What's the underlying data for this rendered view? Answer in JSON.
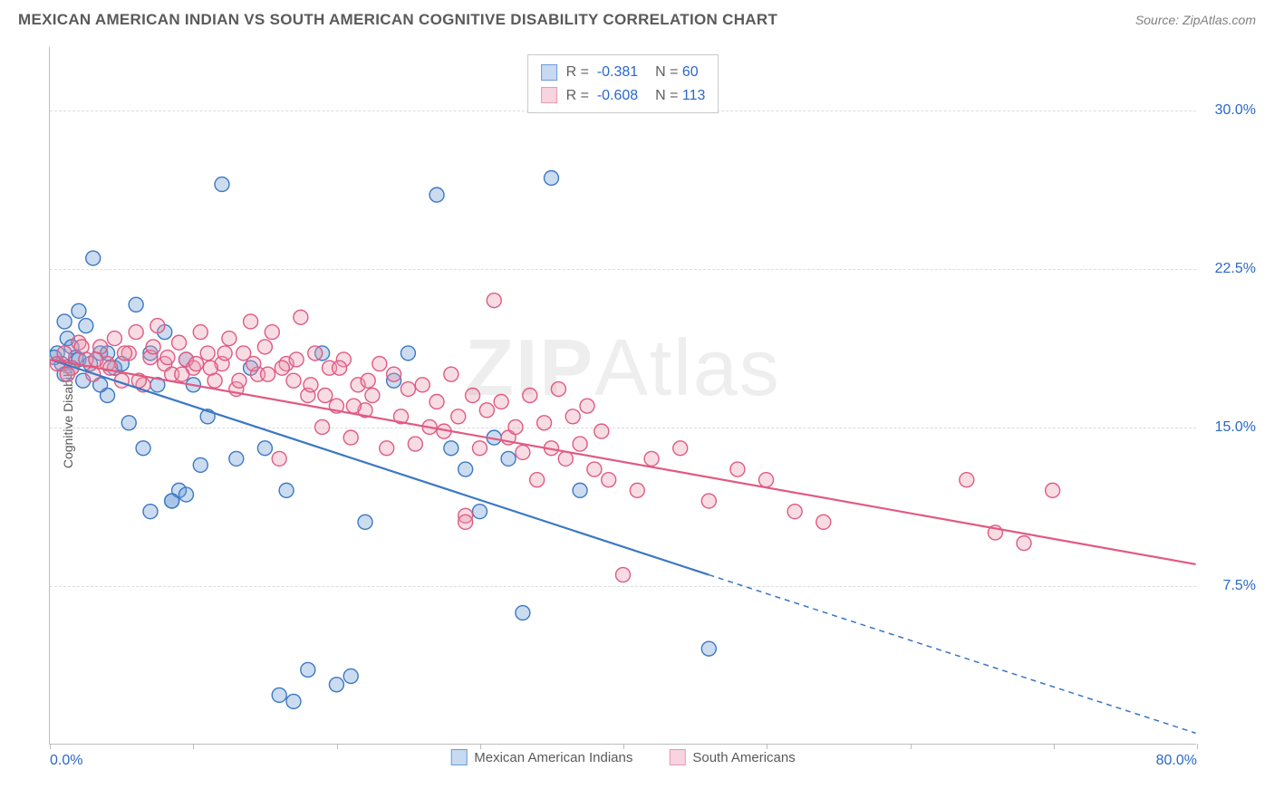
{
  "title": "MEXICAN AMERICAN INDIAN VS SOUTH AMERICAN COGNITIVE DISABILITY CORRELATION CHART",
  "source": "Source: ZipAtlas.com",
  "ylabel": "Cognitive Disability",
  "watermark_prefix": "ZIP",
  "watermark_suffix": "Atlas",
  "chart": {
    "type": "scatter",
    "background_color": "#ffffff",
    "grid_color": "#dcdcdc",
    "axis_color": "#bdbdbd",
    "tick_color": "#2968c8",
    "tick_fontsize": 16,
    "xlim": [
      0,
      80
    ],
    "ylim": [
      0,
      33
    ],
    "xticks": [
      0,
      10,
      20,
      30,
      40,
      50,
      60,
      70,
      80
    ],
    "xtick_labels": {
      "0": "0.0%",
      "80": "80.0%"
    },
    "yticks": [
      7.5,
      15.0,
      22.5,
      30.0
    ],
    "ytick_labels": [
      "7.5%",
      "15.0%",
      "22.5%",
      "30.0%"
    ],
    "marker_radius": 8,
    "marker_stroke_width": 1.4,
    "marker_fill_opacity": 0.35,
    "trend_line_width": 2.2,
    "series": [
      {
        "name": "Mexican American Indians",
        "color": "#6b9bd8",
        "stroke": "#3c78c3",
        "swatch_fill": "#c7daf2",
        "swatch_border": "#6b9bd8",
        "R": "-0.381",
        "N": "60",
        "trend": {
          "x1": 0,
          "y1": 18.2,
          "x2": 46,
          "y2": 8.0,
          "x2_ext": 80,
          "y2_ext": 0.5
        },
        "points": [
          [
            0.5,
            18.5
          ],
          [
            0.8,
            18.0
          ],
          [
            1.0,
            17.5
          ],
          [
            1.2,
            19.2
          ],
          [
            1.5,
            18.8
          ],
          [
            1.8,
            18.3
          ],
          [
            2.0,
            20.5
          ],
          [
            2.3,
            17.2
          ],
          [
            2.5,
            19.8
          ],
          [
            3.0,
            23.0
          ],
          [
            3.5,
            18.5
          ],
          [
            4.0,
            16.5
          ],
          [
            4.5,
            17.8
          ],
          [
            5.0,
            18.0
          ],
          [
            5.5,
            15.2
          ],
          [
            6.0,
            20.8
          ],
          [
            6.5,
            14.0
          ],
          [
            7.0,
            18.5
          ],
          [
            7.5,
            17.0
          ],
          [
            8.0,
            19.5
          ],
          [
            8.5,
            11.5
          ],
          [
            9.0,
            12.0
          ],
          [
            9.5,
            18.2
          ],
          [
            10.0,
            17.0
          ],
          [
            11.0,
            15.5
          ],
          [
            12.0,
            26.5
          ],
          [
            13.0,
            13.5
          ],
          [
            14.0,
            17.8
          ],
          [
            15.0,
            14.0
          ],
          [
            16.0,
            2.3
          ],
          [
            7.0,
            11.0
          ],
          [
            8.5,
            11.5
          ],
          [
            18.0,
            3.5
          ],
          [
            17.0,
            2.0
          ],
          [
            19.0,
            18.5
          ],
          [
            20.0,
            2.8
          ],
          [
            16.5,
            12.0
          ],
          [
            21.0,
            3.2
          ],
          [
            22.0,
            10.5
          ],
          [
            24.0,
            17.2
          ],
          [
            25.0,
            18.5
          ],
          [
            27.0,
            26.0
          ],
          [
            28.0,
            14.0
          ],
          [
            29.0,
            13.0
          ],
          [
            30.0,
            11.0
          ],
          [
            31.0,
            14.5
          ],
          [
            32.0,
            13.5
          ],
          [
            33.0,
            6.2
          ],
          [
            35.0,
            26.8
          ],
          [
            37.0,
            12.0
          ],
          [
            46.0,
            4.5
          ],
          [
            9.5,
            11.8
          ],
          [
            10.5,
            13.2
          ],
          [
            1.0,
            20.0
          ],
          [
            2.0,
            18.2
          ],
          [
            3.5,
            17.0
          ],
          [
            4.0,
            18.5
          ],
          [
            1.5,
            17.8
          ],
          [
            2.8,
            18.0
          ],
          [
            0.3,
            18.3
          ]
        ]
      },
      {
        "name": "South Americans",
        "color": "#e89ab0",
        "stroke": "#e05a82",
        "swatch_fill": "#f7d4df",
        "swatch_border": "#e89ab0",
        "R": "-0.608",
        "N": "113",
        "trend": {
          "x1": 0,
          "y1": 18.2,
          "x2": 80,
          "y2": 8.5,
          "x2_ext": 80,
          "y2_ext": 8.5
        },
        "points": [
          [
            0.5,
            18.0
          ],
          [
            1.0,
            18.5
          ],
          [
            1.5,
            17.8
          ],
          [
            2.0,
            19.0
          ],
          [
            2.5,
            18.2
          ],
          [
            3.0,
            17.5
          ],
          [
            3.5,
            18.8
          ],
          [
            4.0,
            18.0
          ],
          [
            4.5,
            19.2
          ],
          [
            5.0,
            17.2
          ],
          [
            5.5,
            18.5
          ],
          [
            6.0,
            19.5
          ],
          [
            6.5,
            17.0
          ],
          [
            7.0,
            18.3
          ],
          [
            7.5,
            19.8
          ],
          [
            8.0,
            18.0
          ],
          [
            8.5,
            17.5
          ],
          [
            9.0,
            19.0
          ],
          [
            9.5,
            18.2
          ],
          [
            10.0,
            17.8
          ],
          [
            10.5,
            19.5
          ],
          [
            11.0,
            18.5
          ],
          [
            11.5,
            17.2
          ],
          [
            12.0,
            18.0
          ],
          [
            12.5,
            19.2
          ],
          [
            13.0,
            16.8
          ],
          [
            13.5,
            18.5
          ],
          [
            14.0,
            20.0
          ],
          [
            14.5,
            17.5
          ],
          [
            15.0,
            18.8
          ],
          [
            15.5,
            19.5
          ],
          [
            16.0,
            13.5
          ],
          [
            16.5,
            18.0
          ],
          [
            17.0,
            17.2
          ],
          [
            17.5,
            20.2
          ],
          [
            18.0,
            16.5
          ],
          [
            18.5,
            18.5
          ],
          [
            19.0,
            15.0
          ],
          [
            19.5,
            17.8
          ],
          [
            20.0,
            16.0
          ],
          [
            20.5,
            18.2
          ],
          [
            21.0,
            14.5
          ],
          [
            21.5,
            17.0
          ],
          [
            22.0,
            15.8
          ],
          [
            22.5,
            16.5
          ],
          [
            23.0,
            18.0
          ],
          [
            23.5,
            14.0
          ],
          [
            24.0,
            17.5
          ],
          [
            24.5,
            15.5
          ],
          [
            25.0,
            16.8
          ],
          [
            25.5,
            14.2
          ],
          [
            26.0,
            17.0
          ],
          [
            26.5,
            15.0
          ],
          [
            27.0,
            16.2
          ],
          [
            27.5,
            14.8
          ],
          [
            28.0,
            17.5
          ],
          [
            28.5,
            15.5
          ],
          [
            29.0,
            10.8
          ],
          [
            29.5,
            16.5
          ],
          [
            30.0,
            14.0
          ],
          [
            30.5,
            15.8
          ],
          [
            31.0,
            21.0
          ],
          [
            31.5,
            16.2
          ],
          [
            32.0,
            14.5
          ],
          [
            32.5,
            15.0
          ],
          [
            33.0,
            13.8
          ],
          [
            33.5,
            16.5
          ],
          [
            34.0,
            12.5
          ],
          [
            34.5,
            15.2
          ],
          [
            35.0,
            14.0
          ],
          [
            35.5,
            16.8
          ],
          [
            36.0,
            13.5
          ],
          [
            36.5,
            15.5
          ],
          [
            37.0,
            14.2
          ],
          [
            37.5,
            16.0
          ],
          [
            38.0,
            13.0
          ],
          [
            38.5,
            14.8
          ],
          [
            39.0,
            12.5
          ],
          [
            40.0,
            8.0
          ],
          [
            41.0,
            12.0
          ],
          [
            42.0,
            13.5
          ],
          [
            44.0,
            14.0
          ],
          [
            46.0,
            11.5
          ],
          [
            48.0,
            13.0
          ],
          [
            50.0,
            12.5
          ],
          [
            52.0,
            11.0
          ],
          [
            54.0,
            10.5
          ],
          [
            64.0,
            12.5
          ],
          [
            66.0,
            10.0
          ],
          [
            68.0,
            9.5
          ],
          [
            70.0,
            12.0
          ],
          [
            1.2,
            17.5
          ],
          [
            2.2,
            18.8
          ],
          [
            3.2,
            18.2
          ],
          [
            4.2,
            17.8
          ],
          [
            5.2,
            18.5
          ],
          [
            6.2,
            17.2
          ],
          [
            7.2,
            18.8
          ],
          [
            8.2,
            18.3
          ],
          [
            9.2,
            17.5
          ],
          [
            10.2,
            18.0
          ],
          [
            11.2,
            17.8
          ],
          [
            12.2,
            18.5
          ],
          [
            13.2,
            17.2
          ],
          [
            14.2,
            18.0
          ],
          [
            15.2,
            17.5
          ],
          [
            16.2,
            17.8
          ],
          [
            17.2,
            18.2
          ],
          [
            18.2,
            17.0
          ],
          [
            19.2,
            16.5
          ],
          [
            20.2,
            17.8
          ],
          [
            21.2,
            16.0
          ],
          [
            22.2,
            17.2
          ],
          [
            29.0,
            10.5
          ]
        ]
      }
    ]
  }
}
